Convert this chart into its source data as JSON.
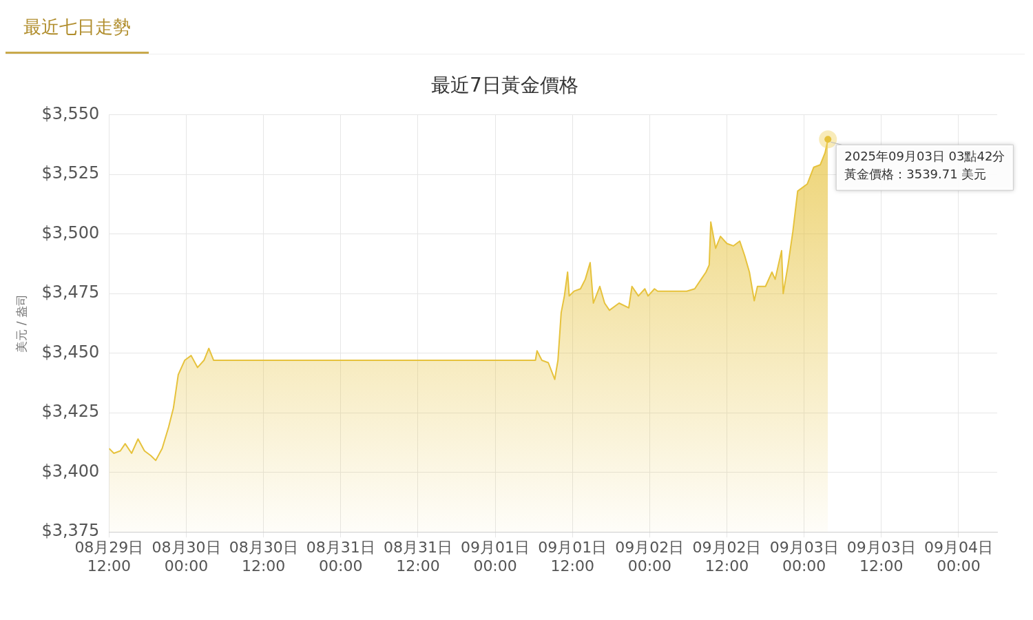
{
  "chart_data": {
    "type": "area",
    "title": "最近7日黃金價格",
    "ylabel": "美元 / 盎司",
    "annotations": [
      "最近七日走勢",
      {
        "text": "2025年09月03日 03點42分",
        "x": "2025-09-03T03:42",
        "y": 3539.71
      },
      {
        "text": "黃金價格：3539.71 美元",
        "x": "2025-09-03T03:42",
        "y": 3539.71
      }
    ],
    "series": [
      {
        "color": "#e6c23c",
        "x": [
          "2025-08-29T12:00",
          "2025-08-29T12:45",
          "2025-08-29T13:45",
          "2025-08-29T14:30",
          "2025-08-29T15:30",
          "2025-08-29T16:30",
          "2025-08-29T17:30",
          "2025-08-29T18:30",
          "2025-08-29T19:15",
          "2025-08-29T20:15",
          "2025-08-29T21:15",
          "2025-08-29T22:00",
          "2025-08-29T22:45",
          "2025-08-29T23:45",
          "2025-08-30T00:45",
          "2025-08-30T01:45",
          "2025-08-30T02:45",
          "2025-08-30T03:30",
          "2025-08-30T04:15",
          "2025-08-30T05:00",
          "2025-09-01T06:15",
          "2025-09-01T06:30",
          "2025-09-01T07:15",
          "2025-09-01T08:15",
          "2025-09-01T09:15",
          "2025-09-01T09:45",
          "2025-09-01T10:15",
          "2025-09-01T10:45",
          "2025-09-01T11:15",
          "2025-09-01T11:30",
          "2025-09-01T12:15",
          "2025-09-01T13:15",
          "2025-09-01T14:00",
          "2025-09-01T14:45",
          "2025-09-01T15:15",
          "2025-09-01T16:15",
          "2025-09-01T17:00",
          "2025-09-01T17:45",
          "2025-09-01T19:15",
          "2025-09-01T20:45",
          "2025-09-01T21:15",
          "2025-09-01T22:15",
          "2025-09-01T23:15",
          "2025-09-01T23:45",
          "2025-09-02T00:45",
          "2025-09-02T01:15",
          "2025-09-02T05:45",
          "2025-09-02T07:00",
          "2025-09-02T08:00",
          "2025-09-02T08:45",
          "2025-09-02T09:15",
          "2025-09-02T09:30",
          "2025-09-02T10:15",
          "2025-09-02T11:00",
          "2025-09-02T12:00",
          "2025-09-02T13:00",
          "2025-09-02T14:00",
          "2025-09-02T14:45",
          "2025-09-02T15:30",
          "2025-09-02T16:15",
          "2025-09-02T16:45",
          "2025-09-02T18:00",
          "2025-09-02T19:00",
          "2025-09-02T19:30",
          "2025-09-02T20:30",
          "2025-09-02T20:45",
          "2025-09-02T21:30",
          "2025-09-02T22:15",
          "2025-09-02T23:00",
          "2025-09-03T00:30",
          "2025-09-03T01:30",
          "2025-09-03T02:30",
          "2025-09-03T03:15",
          "2025-09-03T03:42"
        ],
        "values": [
          3410,
          3408,
          3409,
          3412,
          3408,
          3414,
          3409,
          3407,
          3405,
          3410,
          3419,
          3427,
          3441,
          3447,
          3449,
          3444,
          3447,
          3452,
          3447,
          3447,
          3447,
          3451,
          3447,
          3446,
          3439,
          3447,
          3467,
          3474,
          3484,
          3474,
          3476,
          3477,
          3481,
          3488,
          3471,
          3478,
          3471,
          3468,
          3471,
          3469,
          3478,
          3474,
          3477,
          3474,
          3477,
          3476,
          3476,
          3477,
          3481,
          3484,
          3487,
          3505,
          3494,
          3499,
          3496,
          3495,
          3497,
          3491,
          3484,
          3472,
          3478,
          3478,
          3484,
          3481,
          3493,
          3475,
          3487,
          3501,
          3518,
          3521,
          3528,
          3529,
          3534,
          3539.71
        ]
      }
    ],
    "xlim": [
      "2025-08-29T12:00",
      "2025-09-04T06:00"
    ],
    "xticks": [
      {
        "value": "2025-08-29T12:00",
        "label": "08月29日\n12:00"
      },
      {
        "value": "2025-08-30T00:00",
        "label": "08月30日\n00:00"
      },
      {
        "value": "2025-08-30T12:00",
        "label": "08月30日\n12:00"
      },
      {
        "value": "2025-08-31T00:00",
        "label": "08月31日\n00:00"
      },
      {
        "value": "2025-08-31T12:00",
        "label": "08月31日\n12:00"
      },
      {
        "value": "2025-09-01T00:00",
        "label": "09月01日\n00:00"
      },
      {
        "value": "2025-09-01T12:00",
        "label": "09月01日\n12:00"
      },
      {
        "value": "2025-09-02T00:00",
        "label": "09月02日\n00:00"
      },
      {
        "value": "2025-09-02T12:00",
        "label": "09月02日\n12:00"
      },
      {
        "value": "2025-09-03T00:00",
        "label": "09月03日\n00:00"
      },
      {
        "value": "2025-09-03T12:00",
        "label": "09月03日\n12:00"
      },
      {
        "value": "2025-09-04T00:00",
        "label": "09月04日\n00:00"
      }
    ],
    "ylim": [
      3375,
      3550
    ],
    "yticks": [
      {
        "value": 3375,
        "label": "$3,375"
      },
      {
        "value": 3400,
        "label": "$3,400"
      },
      {
        "value": 3425,
        "label": "$3,425"
      },
      {
        "value": 3450,
        "label": "$3,450"
      },
      {
        "value": 3475,
        "label": "$3,475"
      },
      {
        "value": 3500,
        "label": "$3,500"
      },
      {
        "value": 3525,
        "label": "$3,525"
      },
      {
        "value": 3550,
        "label": "$3,550"
      }
    ],
    "grid": true,
    "legend": false,
    "marker": "none",
    "line_style": "solid"
  }
}
